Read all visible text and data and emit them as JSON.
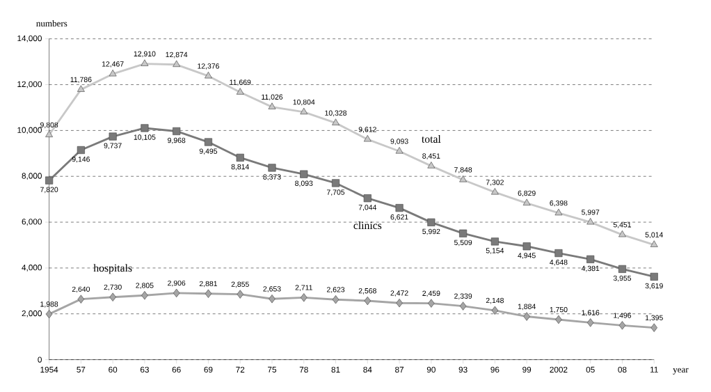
{
  "chart_data": {
    "type": "line",
    "xlabel": "year",
    "ylabel": "numbers",
    "categories": [
      "1954",
      "57",
      "60",
      "63",
      "66",
      "69",
      "72",
      "75",
      "78",
      "81",
      "84",
      "87",
      "90",
      "93",
      "96",
      "99",
      "2002",
      "05",
      "08",
      "11"
    ],
    "series": [
      {
        "name": "total",
        "color": "#c8c8c8",
        "marker": "triangle",
        "values": [
          9808,
          11786,
          12467,
          12910,
          12874,
          12376,
          11669,
          11026,
          10804,
          10328,
          9612,
          9093,
          8451,
          7848,
          7302,
          6829,
          6398,
          5997,
          5451,
          5014
        ],
        "value_labels": [
          "9,808",
          "11,786",
          "12,467",
          "12,910",
          "12,874",
          "12,376",
          "11,669",
          "11,026",
          "10,804",
          "10,328",
          "9,612",
          "9,093",
          "8,451",
          "7,848",
          "7,302",
          "6,829",
          "6,398",
          "5,997",
          "5,451",
          "5,014"
        ]
      },
      {
        "name": "clinics",
        "color": "#7a7a7a",
        "marker": "square",
        "values": [
          7820,
          9146,
          9737,
          10105,
          9968,
          9495,
          8814,
          8373,
          8093,
          7705,
          7044,
          6621,
          5992,
          5509,
          5154,
          4945,
          4648,
          4381,
          3955,
          3619
        ],
        "value_labels": [
          "7,820",
          "9,146",
          "9,737",
          "10,105",
          "9,968",
          "9,495",
          "8,814",
          "8,373",
          "8,093",
          "7,705",
          "7,044",
          "6,621",
          "5,992",
          "5,509",
          "5,154",
          "4,945",
          "4,648",
          "4,381",
          "3,955",
          "3,619"
        ]
      },
      {
        "name": "hospitals",
        "color": "#a5a5a5",
        "marker": "diamond",
        "values": [
          1988,
          2640,
          2730,
          2805,
          2906,
          2881,
          2855,
          2653,
          2711,
          2623,
          2568,
          2472,
          2459,
          2339,
          2148,
          1884,
          1750,
          1616,
          1496,
          1395
        ],
        "value_labels": [
          "1,988",
          "2,640",
          "2,730",
          "2,805",
          "2,906",
          "2,881",
          "2,855",
          "2,653",
          "2,711",
          "2,623",
          "2,568",
          "2,472",
          "2,459",
          "2,339",
          "2,148",
          "1,884",
          "1,750",
          "1,616",
          "1,496",
          "1,395"
        ]
      }
    ],
    "ylim": [
      0,
      14000
    ],
    "yticks": [
      {
        "value": 0,
        "label": "0"
      },
      {
        "value": 2000,
        "label": "2,000"
      },
      {
        "value": 4000,
        "label": "4,000"
      },
      {
        "value": 6000,
        "label": "6,000"
      },
      {
        "value": 8000,
        "label": "8,000"
      },
      {
        "value": 10000,
        "label": "10,000"
      },
      {
        "value": 12000,
        "label": "12,000"
      },
      {
        "value": 14000,
        "label": "14,000"
      }
    ],
    "grid": "y",
    "line_style": "solid"
  }
}
